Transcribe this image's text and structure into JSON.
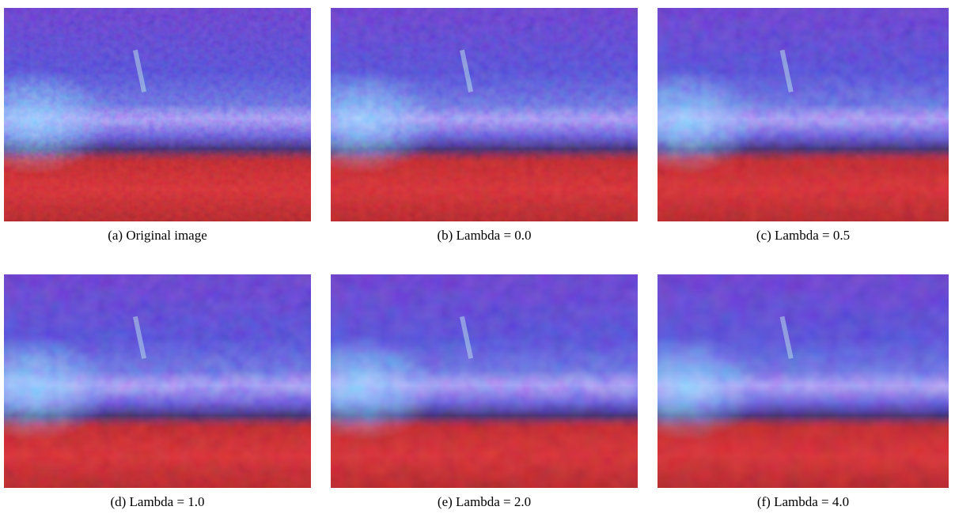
{
  "figure": {
    "panels": [
      {
        "caption": "(a) Original image"
      },
      {
        "caption": "(b) Lambda = 0.0"
      },
      {
        "caption": "(c) Lambda = 0.5"
      },
      {
        "caption": "(d) Lambda = 1.0"
      },
      {
        "caption": "(e) Lambda = 2.0"
      },
      {
        "caption": "(f) Lambda = 4.0"
      }
    ]
  }
}
